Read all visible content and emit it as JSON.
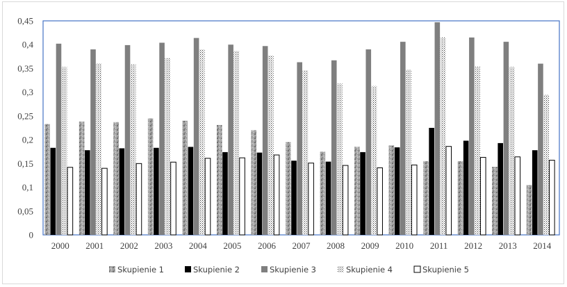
{
  "chart_data": {
    "type": "bar",
    "categories": [
      "2000",
      "2001",
      "2002",
      "2003",
      "2004",
      "2005",
      "2006",
      "2007",
      "2008",
      "2009",
      "2010",
      "2011",
      "2012",
      "2013",
      "2014"
    ],
    "ylim": [
      0,
      0.45
    ],
    "yticks": [
      "0",
      "0,05",
      "0,1",
      "0,15",
      "0,2",
      "0,25",
      "0,3",
      "0,35",
      "0,4",
      "0,45"
    ],
    "ytick_values": [
      0,
      0.05,
      0.1,
      0.15,
      0.2,
      0.25,
      0.3,
      0.35,
      0.4,
      0.45
    ],
    "grid": false,
    "legend_position": "bottom",
    "series": [
      {
        "name": "Skupienie 1",
        "pattern": "granite",
        "color": "#9a9a9a",
        "values": [
          0.233,
          0.238,
          0.237,
          0.245,
          0.24,
          0.231,
          0.22,
          0.195,
          0.175,
          0.185,
          0.188,
          0.155,
          0.155,
          0.143,
          0.105
        ]
      },
      {
        "name": "Skupienie 2",
        "pattern": "solid",
        "color": "#000000",
        "values": [
          0.183,
          0.178,
          0.182,
          0.183,
          0.185,
          0.174,
          0.173,
          0.156,
          0.154,
          0.174,
          0.184,
          0.225,
          0.198,
          0.193,
          0.178
        ]
      },
      {
        "name": "Skupienie 3",
        "pattern": "solid",
        "color": "#7f7f7f",
        "values": [
          0.402,
          0.39,
          0.399,
          0.404,
          0.414,
          0.4,
          0.397,
          0.363,
          0.367,
          0.39,
          0.406,
          0.447,
          0.415,
          0.406,
          0.36
        ]
      },
      {
        "name": "Skupienie 4",
        "pattern": "dots",
        "color": "#ffffff",
        "values": [
          0.353,
          0.36,
          0.359,
          0.372,
          0.39,
          0.387,
          0.377,
          0.346,
          0.318,
          0.313,
          0.347,
          0.415,
          0.354,
          0.353,
          0.295
        ]
      },
      {
        "name": "Skupienie 5",
        "pattern": "outline",
        "color": "#ffffff",
        "values": [
          0.142,
          0.14,
          0.15,
          0.153,
          0.161,
          0.162,
          0.168,
          0.151,
          0.146,
          0.141,
          0.147,
          0.186,
          0.163,
          0.164,
          0.157
        ]
      }
    ],
    "colors": {
      "axis_frame": "#4472c4",
      "axis_text": "#404040",
      "bar_outline": "#000000"
    }
  }
}
